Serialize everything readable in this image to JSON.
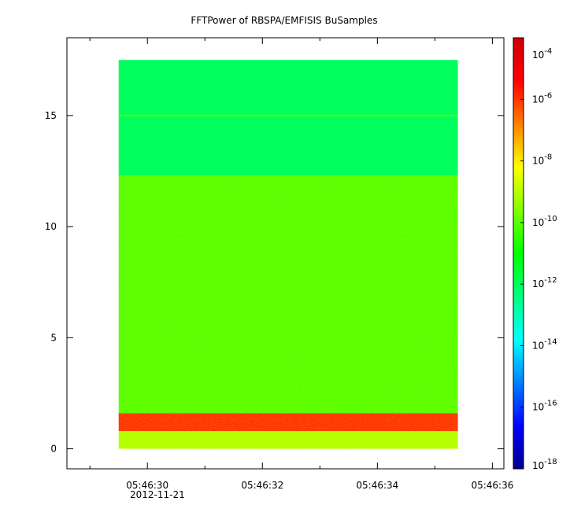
{
  "chart_data": {
    "type": "heatmap",
    "title": "FFTPower of RBSPA/EMFISIS  BuSamples",
    "xlabel": "",
    "ylabel": "",
    "date_label": "2012-11-21",
    "x_ticks": [
      "05:46:30",
      "05:46:32",
      "05:46:34",
      "05:46:36"
    ],
    "x_minor_ticks": [
      "05:46:29",
      "05:46:31",
      "05:46:33",
      "05:46:35"
    ],
    "x_range": [
      "05:46:28.6",
      "05:46:36.2"
    ],
    "data_x_range": [
      "05:46:29.5",
      "05:46:35.4"
    ],
    "y_ticks": [
      0,
      5,
      10,
      15
    ],
    "ylim": [
      -0.9,
      18.5
    ],
    "data_y_range": [
      0,
      17.5
    ],
    "colorbar": {
      "scale": "log",
      "range": [
        1e-18,
        0.0001
      ],
      "tick_labels": [
        {
          "base": "10",
          "exp": "-4"
        },
        {
          "base": "10",
          "exp": "-6"
        },
        {
          "base": "10",
          "exp": "-8"
        },
        {
          "base": "10",
          "exp": "-10"
        },
        {
          "base": "10",
          "exp": "-12"
        },
        {
          "base": "10",
          "exp": "-14"
        },
        {
          "base": "10",
          "exp": "-16"
        },
        {
          "base": "10",
          "exp": "-18"
        }
      ],
      "colors": [
        "#00008f",
        "#0000ff",
        "#0080ff",
        "#00ffff",
        "#00ff80",
        "#00ff00",
        "#80ff00",
        "#ffff00",
        "#ff8000",
        "#ff0000",
        "#cc0000"
      ]
    },
    "bands": [
      {
        "y_from": 12.3,
        "y_to": 17.5,
        "level": "1e-12"
      },
      {
        "y_from": 1.6,
        "y_to": 12.3,
        "level": "1e-10"
      },
      {
        "y_from": 0.8,
        "y_to": 1.6,
        "level": "1e-6"
      },
      {
        "y_from": 0,
        "y_to": 0.8,
        "level": "1e-9"
      }
    ],
    "grid": false,
    "legend": "colorbar-right"
  }
}
